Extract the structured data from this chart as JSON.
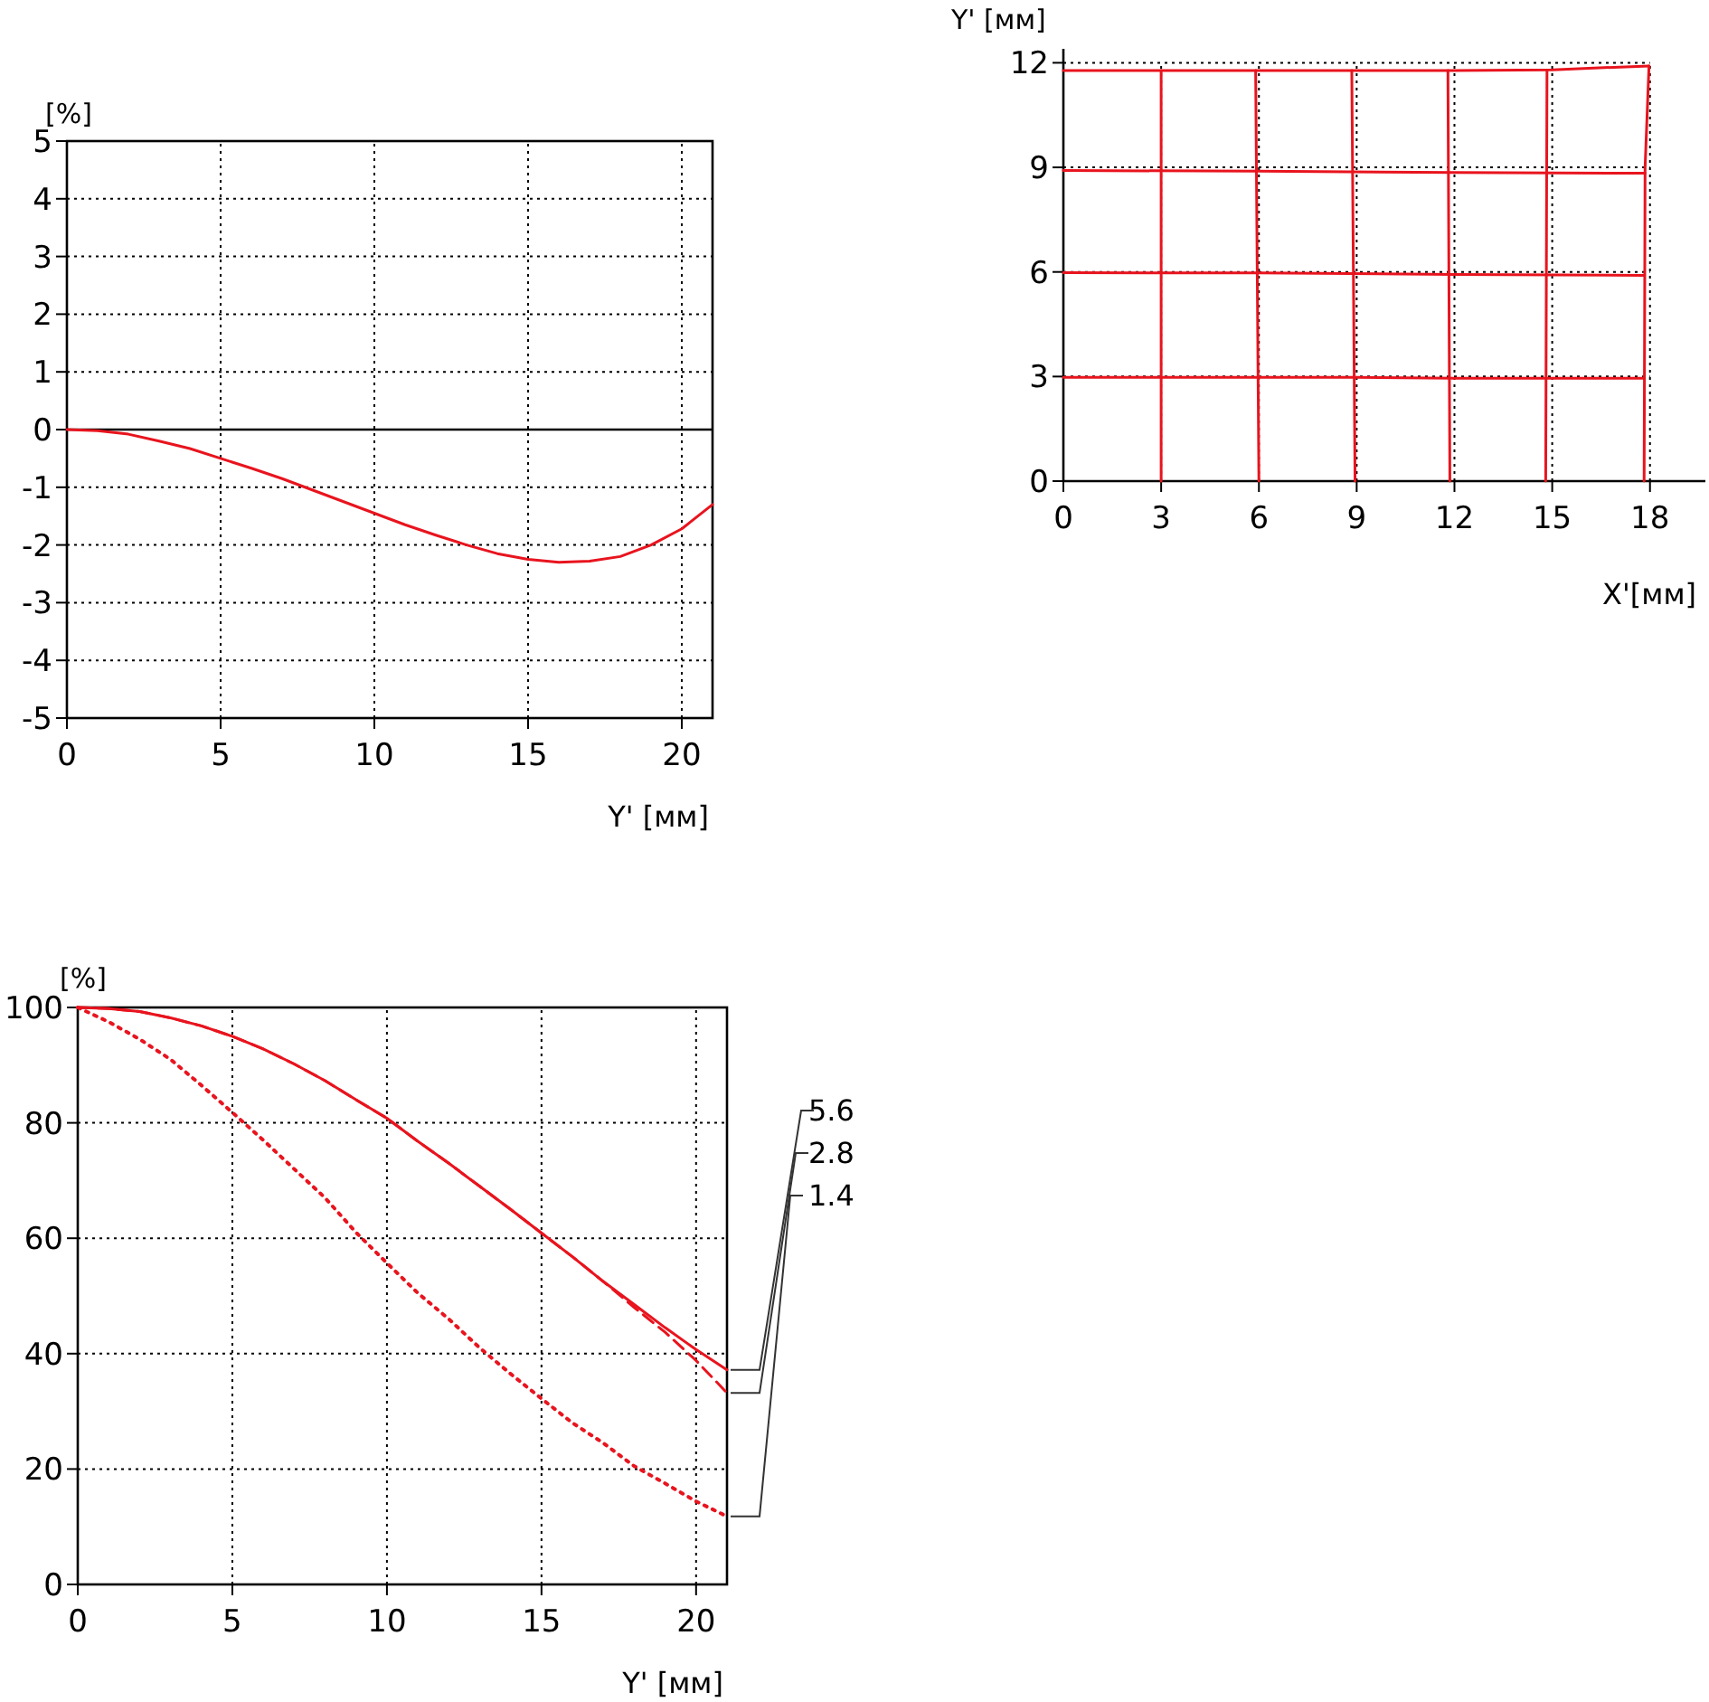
{
  "chart_data": [
    {
      "type": "line",
      "ylabel": "[%]",
      "xlabel": "Y' [мм]",
      "xlim": [
        0,
        21
      ],
      "ylim": [
        -5,
        5
      ],
      "xticks": [
        0,
        5,
        10,
        15,
        20
      ],
      "yticks": [
        -5,
        -4,
        -3,
        -2,
        -1,
        0,
        1,
        2,
        3,
        4,
        5
      ],
      "grid": true,
      "legend": false,
      "marker": "none",
      "ref_lines": [
        {
          "axis": "y",
          "value": 0,
          "color": "#000000"
        }
      ],
      "series": [
        {
          "color": "#e8141e",
          "line_style": "solid",
          "x": [
            0,
            1,
            2,
            3,
            4,
            5,
            6,
            7,
            8,
            9,
            10,
            11,
            12,
            13,
            14,
            15,
            16,
            17,
            18,
            19,
            20,
            21
          ],
          "values": [
            0,
            -0.02,
            -0.08,
            -0.2,
            -0.33,
            -0.5,
            -0.67,
            -0.85,
            -1.05,
            -1.25,
            -1.45,
            -1.65,
            -1.83,
            -2.0,
            -2.15,
            -2.25,
            -2.3,
            -2.28,
            -2.2,
            -2.0,
            -1.72,
            -1.3
          ]
        }
      ]
    },
    {
      "type": "line",
      "ylabel": "Y' [мм]",
      "xlabel": "X'[мм]",
      "xlim": [
        0,
        19.7
      ],
      "ylim": [
        0,
        12.4
      ],
      "xticks": [
        0,
        3,
        6,
        9,
        12,
        15,
        18
      ],
      "yticks": [
        0,
        3,
        6,
        9,
        12
      ],
      "grid": true,
      "legend": false,
      "marker": "none",
      "series": [
        {
          "color": "#e8141e",
          "line_style": "solid",
          "x": [
            0,
            9,
            12,
            17.82
          ],
          "values": [
            2.98,
            2.98,
            2.95,
            2.95
          ]
        },
        {
          "color": "#e8141e",
          "line_style": "solid",
          "x": [
            0,
            6,
            12,
            17.83
          ],
          "values": [
            5.98,
            5.97,
            5.93,
            5.9
          ]
        },
        {
          "color": "#e8141e",
          "line_style": "solid",
          "x": [
            0,
            6,
            12,
            17.85
          ],
          "values": [
            8.91,
            8.89,
            8.85,
            8.83
          ]
        },
        {
          "color": "#e8141e",
          "line_style": "solid",
          "x": [
            0,
            6,
            12,
            15,
            17.97
          ],
          "values": [
            11.78,
            11.78,
            11.78,
            11.8,
            11.91
          ]
        },
        {
          "color": "#e8141e",
          "line_style": "solid",
          "x": [
            3,
            3
          ],
          "values": [
            0,
            11.78
          ]
        },
        {
          "color": "#e8141e",
          "line_style": "solid",
          "x": [
            6,
            5.9
          ],
          "values": [
            0,
            11.78
          ]
        },
        {
          "color": "#e8141e",
          "line_style": "solid",
          "x": [
            8.95,
            8.85
          ],
          "values": [
            0,
            11.78
          ]
        },
        {
          "color": "#e8141e",
          "line_style": "solid",
          "x": [
            11.86,
            11.8
          ],
          "values": [
            0,
            11.78
          ]
        },
        {
          "color": "#e8141e",
          "line_style": "solid",
          "x": [
            14.8,
            14.84
          ],
          "values": [
            0,
            11.78
          ]
        },
        {
          "color": "#e8141e",
          "line_style": "solid",
          "x": [
            17.82,
            17.85,
            17.97
          ],
          "values": [
            0,
            9,
            11.91
          ]
        }
      ]
    },
    {
      "type": "line",
      "ylabel": "[%]",
      "xlabel": "Y' [мм]",
      "xlim": [
        0,
        21
      ],
      "ylim": [
        0,
        100
      ],
      "xticks": [
        0,
        5,
        10,
        15,
        20
      ],
      "yticks": [
        0,
        20,
        40,
        60,
        80,
        100
      ],
      "grid": true,
      "legend": "right",
      "marker": "none",
      "series": [
        {
          "name": "5.6",
          "color": "#e8141e",
          "line_style": "solid",
          "x": [
            0,
            1,
            2,
            3,
            4,
            5,
            6,
            7,
            8,
            9,
            10,
            11,
            12,
            13,
            14,
            15,
            16,
            17,
            18,
            19,
            20,
            21
          ],
          "values": [
            100,
            99.8,
            99.3,
            98.2,
            96.8,
            95,
            92.8,
            90.2,
            87.3,
            84,
            80.8,
            76.8,
            73,
            69,
            65,
            60.9,
            56.8,
            52.5,
            48.5,
            44.5,
            40.7,
            37.2
          ]
        },
        {
          "name": "2.8",
          "color": "#e8141e",
          "line_style": "dashed",
          "x": [
            0,
            1,
            2,
            3,
            4,
            5,
            6,
            7,
            8,
            9,
            10,
            11,
            12,
            13,
            14,
            15,
            16,
            17,
            18,
            19,
            20,
            21
          ],
          "values": [
            100,
            99.8,
            99.3,
            98.2,
            96.8,
            95,
            92.8,
            90.2,
            87.3,
            84,
            80.8,
            76.8,
            73,
            69,
            65,
            60.9,
            56.8,
            52.5,
            48,
            43.7,
            38.8,
            33.2
          ]
        },
        {
          "name": "1.4",
          "color": "#e8141e",
          "line_style": "dotted",
          "x": [
            0,
            1,
            2,
            3,
            4,
            5,
            6,
            7,
            8,
            9,
            10,
            11,
            12,
            13,
            14,
            15,
            16,
            17,
            18,
            19,
            20,
            21
          ],
          "values": [
            100,
            97.5,
            94.5,
            91,
            86.5,
            81.8,
            77,
            72,
            67,
            61,
            55.7,
            50.5,
            46,
            41,
            36.5,
            32.2,
            28,
            24.5,
            20.5,
            17.5,
            14.4,
            11.8
          ]
        }
      ]
    }
  ]
}
